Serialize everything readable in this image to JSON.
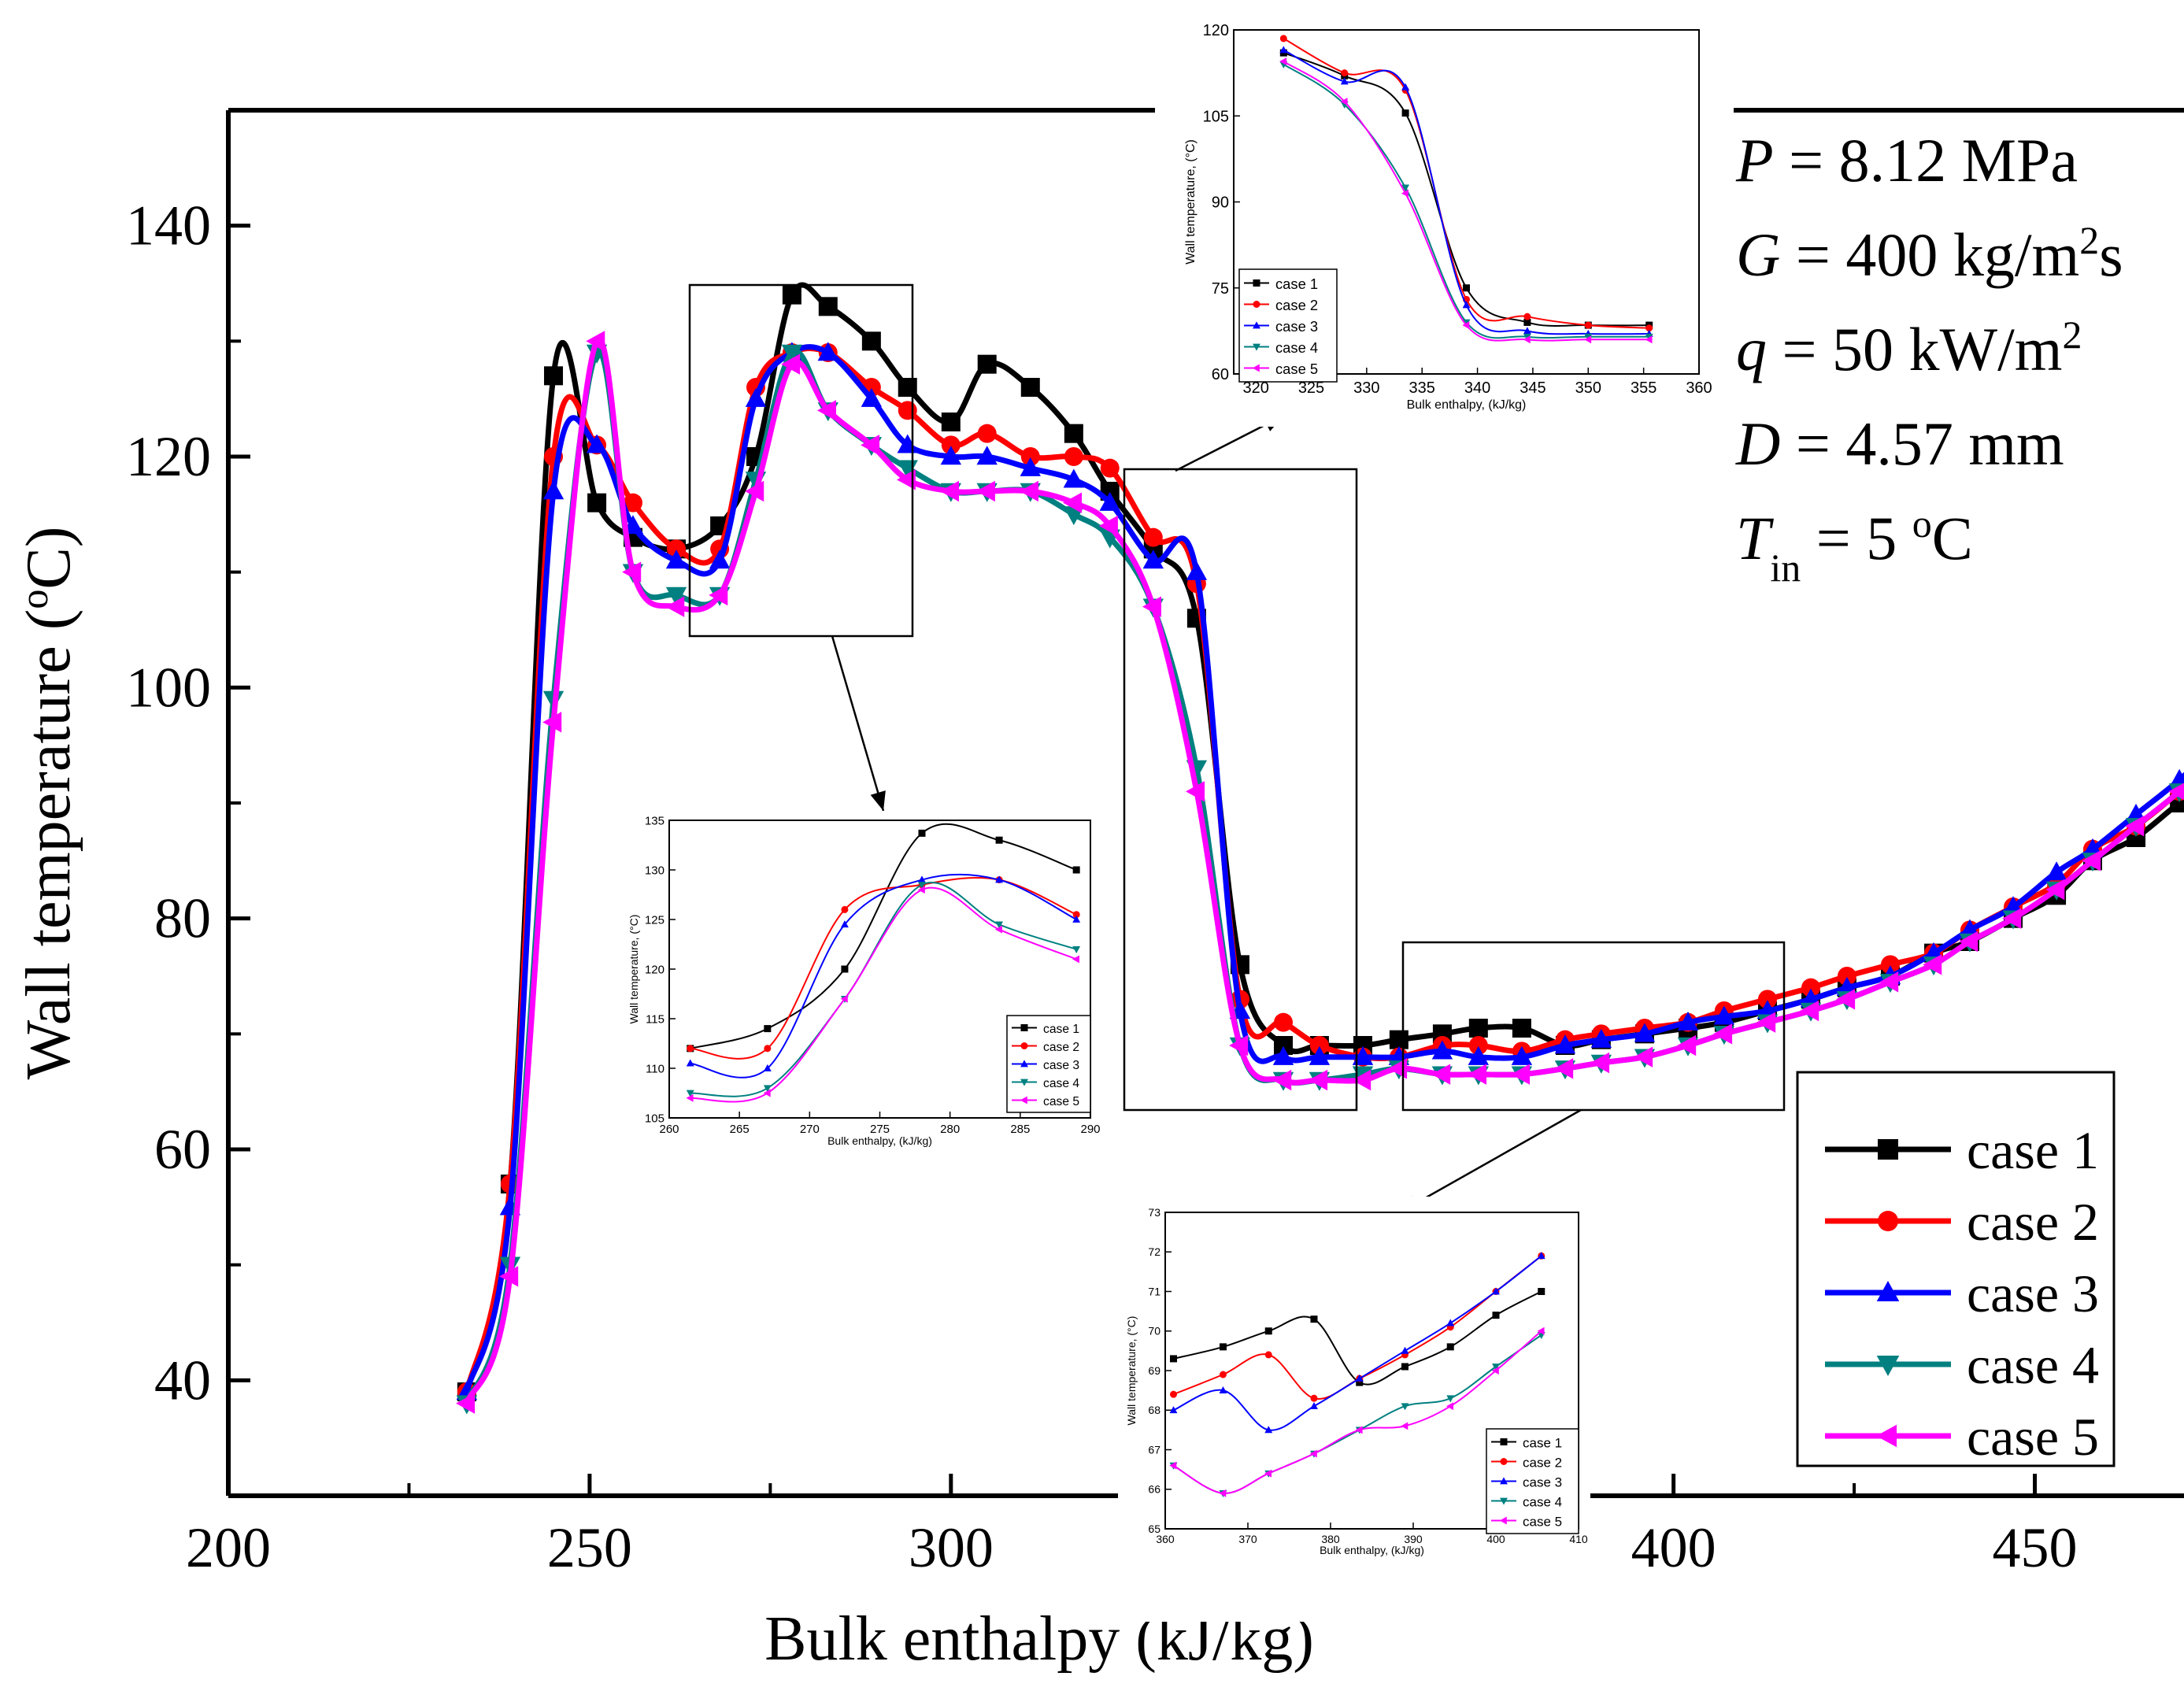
{
  "chart_data": {
    "type": "line",
    "main": {
      "xlabel": "Bulk enthalpy (kJ/kg)",
      "ylabel_text": "Wall temperature (",
      "ylabel_sup": "o",
      "ylabel_end": "C)",
      "xlim": [
        200,
        475
      ],
      "ylim": [
        30,
        150
      ],
      "xticks": [
        200,
        250,
        300,
        350,
        400,
        450
      ],
      "xticklabels": [
        "200",
        "250",
        "300",
        "",
        "400",
        "450"
      ],
      "yticks": [
        40,
        60,
        80,
        100,
        120,
        140
      ],
      "yticklabels": [
        "40",
        "60",
        "80",
        "100",
        "120",
        "140"
      ],
      "legend_position": "bottom-right",
      "conditions": [
        {
          "sym": "P",
          "sub": "",
          "text": " = 8.12 MPa",
          "sup": "",
          "after": ""
        },
        {
          "sym": "G",
          "sub": "",
          "text": " = 400 kg/m",
          "sup": "2",
          "after": "s"
        },
        {
          "sym": "q",
          "sub": "",
          "text": " = 50 kW/m",
          "sup": "2",
          "after": ""
        },
        {
          "sym": "D",
          "sub": "",
          "text": " = 4.57 mm",
          "sup": "",
          "after": ""
        },
        {
          "sym": "T",
          "sub": "in",
          "text": " = 5 ",
          "sup": "o",
          "after": "C"
        }
      ],
      "series": [
        {
          "name": "case 1",
          "color": "#000000",
          "marker": "square",
          "x": [
            233,
            239,
            245,
            251,
            256,
            262,
            268,
            273,
            278,
            283,
            289,
            294,
            300,
            305,
            311,
            317,
            322,
            328,
            334,
            340,
            346,
            351,
            357,
            362,
            368,
            373,
            379,
            385,
            390,
            396,
            402,
            407,
            413,
            419,
            424,
            430,
            436,
            441,
            447,
            453,
            458,
            464,
            470,
            475
          ],
          "y": [
            39,
            57,
            127,
            116,
            113,
            112,
            114,
            120,
            134,
            133,
            130,
            126,
            123,
            128,
            126,
            122,
            117,
            112,
            106,
            76,
            69,
            69,
            69,
            69.5,
            70,
            70.5,
            70.5,
            69,
            69.5,
            70,
            70.5,
            71,
            72,
            73,
            74,
            75,
            77,
            78,
            80,
            82,
            85,
            87,
            90,
            92
          ]
        },
        {
          "name": "case 2",
          "color": "#ff0000",
          "marker": "circle",
          "x": [
            233,
            239,
            245,
            251,
            256,
            262,
            268,
            273,
            278,
            283,
            289,
            294,
            300,
            305,
            311,
            317,
            322,
            328,
            334,
            340,
            346,
            351,
            357,
            362,
            368,
            373,
            379,
            385,
            390,
            396,
            402,
            407,
            413,
            419,
            424,
            430,
            436,
            441,
            447,
            453,
            458,
            464,
            470,
            475
          ],
          "y": [
            39,
            57,
            120,
            121,
            116,
            112,
            112,
            126,
            129,
            129,
            126,
            124,
            121,
            122,
            120,
            120,
            119,
            113,
            109,
            73,
            71,
            69,
            68,
            68,
            69,
            69,
            68.5,
            69.5,
            70,
            70.5,
            71,
            72,
            73,
            74,
            75,
            76,
            77,
            79,
            81,
            83,
            86,
            88,
            91,
            94
          ]
        },
        {
          "name": "case 3",
          "color": "#0000ff",
          "marker": "triangle-up",
          "x": [
            233,
            239,
            245,
            251,
            256,
            262,
            268,
            273,
            278,
            283,
            289,
            294,
            300,
            305,
            311,
            317,
            322,
            328,
            334,
            340,
            346,
            351,
            357,
            362,
            368,
            373,
            379,
            385,
            390,
            396,
            402,
            407,
            413,
            419,
            424,
            430,
            436,
            441,
            447,
            453,
            458,
            464,
            470,
            475
          ],
          "y": [
            39,
            55,
            117,
            121,
            114,
            111,
            111,
            125,
            129,
            129,
            125,
            121,
            120,
            120,
            119,
            118,
            116,
            111,
            110,
            72,
            68,
            68,
            68,
            68,
            68.5,
            68,
            68,
            69,
            69.5,
            70,
            71,
            71.5,
            72,
            73,
            74,
            75,
            77,
            79,
            81,
            84,
            86,
            89,
            92,
            95
          ]
        },
        {
          "name": "case 4",
          "color": "#008080",
          "marker": "triangle-down",
          "x": [
            233,
            239,
            245,
            251,
            256,
            262,
            268,
            273,
            278,
            283,
            289,
            294,
            300,
            305,
            311,
            317,
            322,
            328,
            334,
            340,
            346,
            351,
            357,
            362,
            368,
            373,
            379,
            385,
            390,
            396,
            402,
            407,
            413,
            419,
            424,
            430,
            436,
            441,
            447,
            453,
            458,
            464,
            470,
            475
          ],
          "y": [
            38,
            50,
            99,
            129,
            110,
            108,
            108,
            118,
            129,
            124,
            121,
            119,
            117,
            117,
            117,
            115,
            113,
            107,
            93,
            69,
            66,
            66,
            66.5,
            67,
            66.5,
            66.5,
            66.5,
            67,
            67.5,
            68,
            69,
            70,
            71,
            72,
            73,
            74.5,
            76,
            78,
            80,
            82.5,
            85,
            88,
            91,
            94
          ]
        },
        {
          "name": "case 5",
          "color": "#ff00ff",
          "marker": "triangle-left",
          "x": [
            233,
            239,
            245,
            251,
            256,
            262,
            268,
            273,
            278,
            283,
            289,
            294,
            300,
            305,
            311,
            317,
            322,
            328,
            334,
            340,
            346,
            351,
            357,
            362,
            368,
            373,
            379,
            385,
            390,
            396,
            402,
            407,
            413,
            419,
            424,
            430,
            436,
            441,
            447,
            453,
            458,
            464,
            470,
            475
          ],
          "y": [
            38,
            49,
            97,
            130,
            110,
            107,
            108,
            117,
            128,
            124,
            121,
            118,
            117,
            117,
            117,
            116,
            114,
            107,
            91,
            69,
            66,
            66,
            66,
            67,
            66.5,
            66.5,
            66.5,
            67,
            67.5,
            68,
            69,
            70,
            71,
            72,
            73,
            74.5,
            76,
            78,
            80,
            82.5,
            85,
            88,
            91,
            94
          ]
        }
      ]
    },
    "insets": [
      {
        "xlabel": "Bulk enthalpy, (kJ/kg)",
        "ylabel": "Wall temperature, (°C)",
        "xlim": [
          318,
          360
        ],
        "ylim": [
          60,
          120
        ],
        "xticks": [
          320,
          325,
          330,
          335,
          340,
          345,
          350,
          355,
          360
        ],
        "yticks": [
          60,
          75,
          90,
          105,
          120
        ],
        "legend_position": "bottom-left",
        "series": [
          {
            "name": "case 1",
            "color": "#000000",
            "x": [
              322.5,
              328,
              333.5,
              339,
              344.5,
              350,
              355.5
            ],
            "y": [
              116,
              112,
              105.5,
              75,
              69,
              68.5,
              68.5
            ]
          },
          {
            "name": "case 2",
            "color": "#ff0000",
            "x": [
              322.5,
              328,
              333.5,
              339,
              344.5,
              350,
              355.5
            ],
            "y": [
              118.5,
              112.5,
              109.5,
              73,
              70,
              68.5,
              68
            ]
          },
          {
            "name": "case 3",
            "color": "#0000ff",
            "x": [
              322.5,
              328,
              333.5,
              339,
              344.5,
              350,
              355.5
            ],
            "y": [
              116.5,
              111,
              110,
              72,
              67.5,
              67,
              67
            ]
          },
          {
            "name": "case 4",
            "color": "#008080",
            "x": [
              322.5,
              328,
              333.5,
              339,
              344.5,
              350,
              355.5
            ],
            "y": [
              114,
              107,
              92.5,
              69,
              66.5,
              66.5,
              66.5
            ]
          },
          {
            "name": "case 5",
            "color": "#ff00ff",
            "x": [
              322.5,
              328,
              333.5,
              339,
              344.5,
              350,
              355.5
            ],
            "y": [
              114.5,
              107.5,
              91.5,
              68.5,
              66,
              66,
              66
            ]
          }
        ]
      },
      {
        "xlabel": "Bulk enthalpy, (kJ/kg)",
        "ylabel": "Wall temperature, (°C)",
        "xlim": [
          260,
          290
        ],
        "ylim": [
          105,
          135
        ],
        "xticks": [
          260,
          265,
          270,
          275,
          280,
          285,
          290
        ],
        "yticks": [
          105,
          110,
          115,
          120,
          125,
          130,
          135
        ],
        "legend_position": "bottom-right",
        "series": [
          {
            "name": "case 1",
            "color": "#000000",
            "x": [
              261.5,
              267,
              272.5,
              278,
              283.5,
              289
            ],
            "y": [
              112,
              114,
              120,
              133.7,
              133,
              130
            ]
          },
          {
            "name": "case 2",
            "color": "#ff0000",
            "x": [
              261.5,
              267,
              272.5,
              278,
              283.5,
              289
            ],
            "y": [
              112,
              112,
              126,
              128.5,
              129,
              125.5
            ]
          },
          {
            "name": "case 3",
            "color": "#0000ff",
            "x": [
              261.5,
              267,
              272.5,
              278,
              283.5,
              289
            ],
            "y": [
              110.5,
              110,
              124.5,
              129,
              129,
              125
            ]
          },
          {
            "name": "case 4",
            "color": "#008080",
            "x": [
              261.5,
              267,
              272.5,
              278,
              283.5,
              289
            ],
            "y": [
              107.5,
              108,
              117,
              128.5,
              124.5,
              122
            ]
          },
          {
            "name": "case 5",
            "color": "#ff00ff",
            "x": [
              261.5,
              267,
              272.5,
              278,
              283.5,
              289
            ],
            "y": [
              107,
              107.5,
              117,
              128,
              124,
              121
            ]
          }
        ]
      },
      {
        "xlabel": "Bulk enthalpy, (kJ/kg)",
        "ylabel": "Wall temperature, (°C)",
        "xlim": [
          360,
          410
        ],
        "ylim": [
          65,
          73
        ],
        "xticks": [
          360,
          370,
          380,
          390,
          400,
          410
        ],
        "yticks": [
          65,
          66,
          67,
          68,
          69,
          70,
          71,
          72,
          73
        ],
        "legend_position": "bottom-right",
        "series": [
          {
            "name": "case 1",
            "color": "#000000",
            "x": [
              361,
              367,
              372.5,
              378,
              383.5,
              389,
              394.5,
              400,
              405.5
            ],
            "y": [
              69.3,
              69.6,
              70,
              70.3,
              68.7,
              69.1,
              69.6,
              70.4,
              71
            ]
          },
          {
            "name": "case 2",
            "color": "#ff0000",
            "x": [
              361,
              367,
              372.5,
              378,
              383.5,
              389,
              394.5,
              400,
              405.5
            ],
            "y": [
              68.4,
              68.9,
              69.4,
              68.3,
              68.8,
              69.4,
              70.1,
              71,
              71.9
            ]
          },
          {
            "name": "case 3",
            "color": "#0000ff",
            "x": [
              361,
              367,
              372.5,
              378,
              383.5,
              389,
              394.5,
              400,
              405.5
            ],
            "y": [
              68,
              68.5,
              67.5,
              68.1,
              68.8,
              69.5,
              70.2,
              71,
              71.9
            ]
          },
          {
            "name": "case 4",
            "color": "#008080",
            "x": [
              361,
              367,
              372.5,
              378,
              383.5,
              389,
              394.5,
              400,
              405.5
            ],
            "y": [
              66.6,
              65.9,
              66.4,
              66.9,
              67.5,
              68.1,
              68.3,
              69.1,
              69.9
            ]
          },
          {
            "name": "case 5",
            "color": "#ff00ff",
            "x": [
              361,
              367,
              372.5,
              378,
              383.5,
              389,
              394.5,
              400,
              405.5
            ],
            "y": [
              66.6,
              65.9,
              66.4,
              66.9,
              67.5,
              67.6,
              68.1,
              69,
              70
            ]
          }
        ]
      }
    ]
  }
}
